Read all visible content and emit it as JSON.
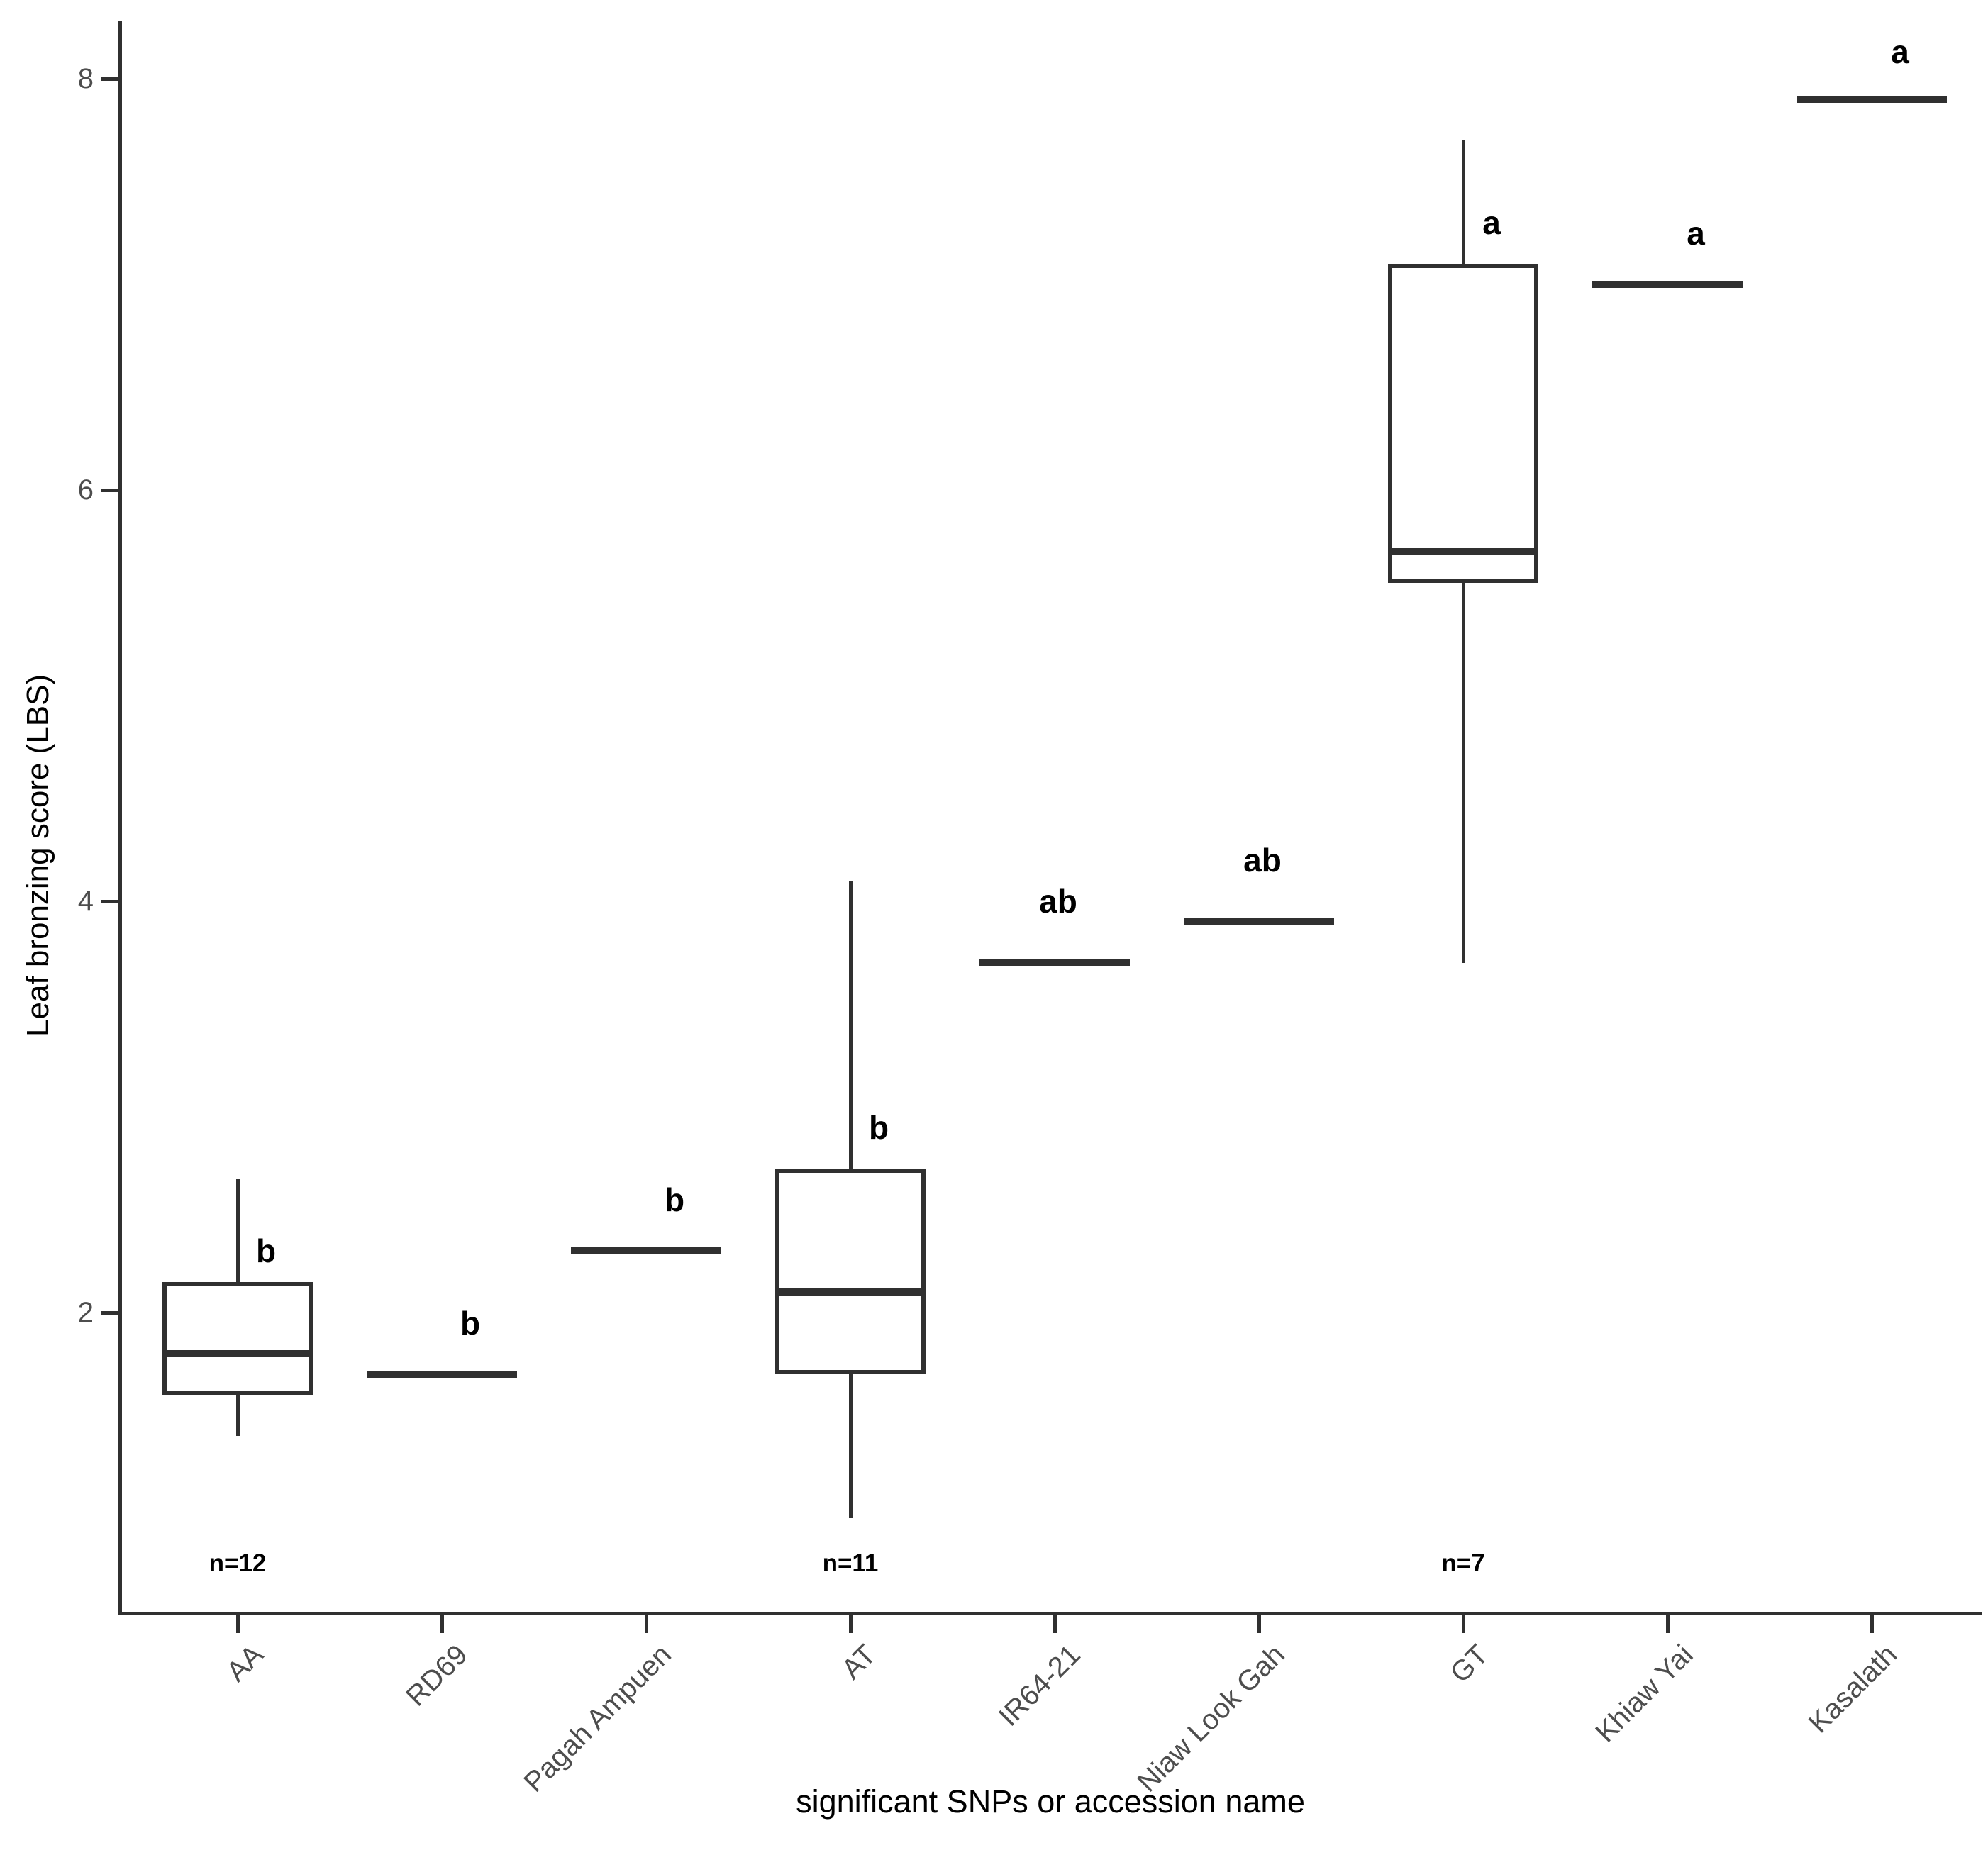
{
  "chart_data": {
    "type": "boxplot",
    "title": "",
    "xlabel": "significant SNPs or accession name",
    "ylabel": "Leaf bronzing score (LBS)",
    "ylim": [
      0.55,
      8.28
    ],
    "yticks": [
      2,
      4,
      6,
      8
    ],
    "grid": "off",
    "categories": [
      "AA",
      "RD69",
      "Pagah Ampuen",
      "AT",
      "IR64-21",
      "Niaw Look Gah",
      "GT",
      "Khiaw Yai",
      "Kasalath"
    ],
    "groups": [
      {
        "name": "AA",
        "kind": "box",
        "whisker_low": 1.4,
        "q1": 1.6,
        "median": 1.8,
        "q3": 2.15,
        "whisker_high": 2.65,
        "letter": "b",
        "letter_y": 2.3,
        "n_label": "n=12"
      },
      {
        "name": "RD69",
        "kind": "line",
        "median": 1.7,
        "letter": "b",
        "letter_y": 1.95
      },
      {
        "name": "Pagah Ampuen",
        "kind": "line",
        "median": 2.3,
        "letter": "b",
        "letter_y": 2.55
      },
      {
        "name": "AT",
        "kind": "box",
        "whisker_low": 1.0,
        "q1": 1.7,
        "median": 2.1,
        "q3": 2.7,
        "whisker_high": 4.1,
        "letter": "b",
        "letter_y": 2.9,
        "n_label": "n=11"
      },
      {
        "name": "IR64-21",
        "kind": "line",
        "median": 3.7,
        "letter": "ab",
        "letter_y": 4.0
      },
      {
        "name": "Niaw Look Gah",
        "kind": "line",
        "median": 3.9,
        "letter": "ab",
        "letter_y": 4.2
      },
      {
        "name": "GT",
        "kind": "box",
        "whisker_low": 3.7,
        "q1": 5.55,
        "median": 5.7,
        "q3": 7.1,
        "whisker_high": 7.7,
        "letter": "a",
        "letter_y": 7.3,
        "n_label": "n=7"
      },
      {
        "name": "Khiaw Yai",
        "kind": "line",
        "median": 7.0,
        "letter": "a",
        "letter_y": 7.25
      },
      {
        "name": "Kasalath",
        "kind": "line",
        "median": 7.9,
        "letter": "a",
        "letter_y": 8.13
      }
    ],
    "n_label_y": 0.78,
    "colors": {
      "stroke": "#303030",
      "tick_label": "#4d4d4d",
      "letter": "#000000",
      "background": "#ffffff"
    }
  }
}
